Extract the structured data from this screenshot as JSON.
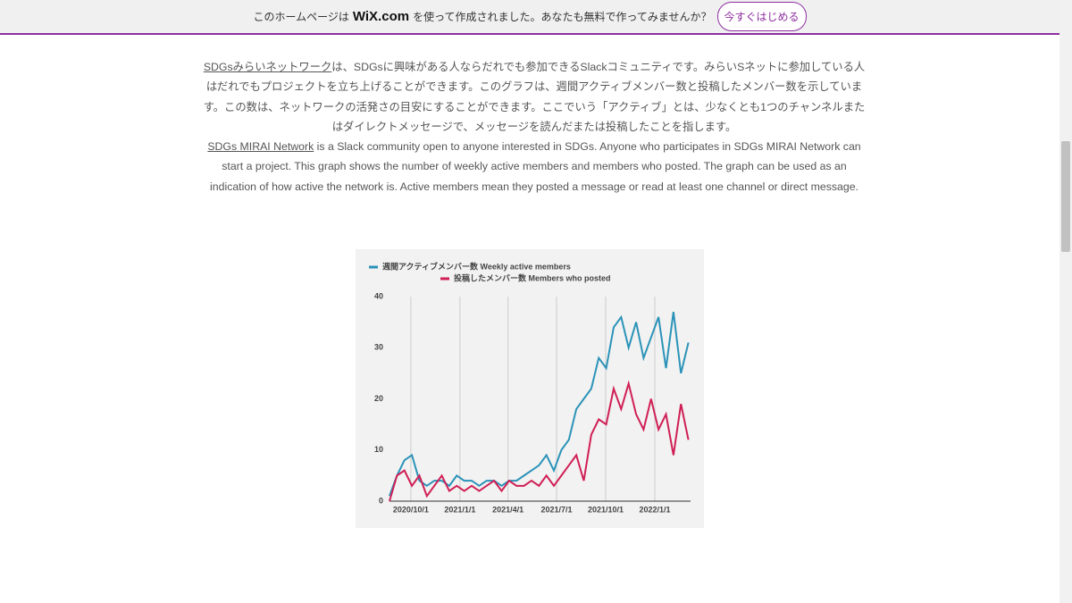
{
  "banner": {
    "text_before": "このホームページは",
    "brand": "WiX.com",
    "text_after": "を使って作成されました。あなたも無料で作ってみませんか？",
    "button": "今すぐはじめる"
  },
  "intro": {
    "ja_link": "SDGsみらいネットワーク",
    "ja_text": "は、SDGsに興味がある人ならだれでも参加できるSlackコミュニティです。みらいSネットに参加している人はだれでもプロジェクトを立ち上げることができます。このグラフは、週間アクティブメンバー数と投稿したメンバー数を示しています。この数は、ネットワークの活発さの目安にすることができます。ここでいう「アクティブ」とは、少なくとも1つのチャンネルまたはダイレクトメッセージで、メッセージを読んだまたは投稿したことを指します。",
    "en_link": "SDGs MIRAI Network",
    "en_text": " is a Slack community open to anyone interested in SDGs. Anyone who participates in SDGs MIRAI Network can start a project. This graph shows the number of weekly active members and members who posted. The graph can be used as an indication of how active the network is. Active members mean they posted a message or read at least one channel or direct message."
  },
  "chart_data": {
    "type": "line",
    "x": [
      "2020/8/22",
      "2020/9/5",
      "2020/9/19",
      "2020/10/3",
      "2020/10/17",
      "2020/10/31",
      "2020/11/14",
      "2020/11/28",
      "2020/12/12",
      "2020/12/26",
      "2021/1/9",
      "2021/1/23",
      "2021/2/6",
      "2021/2/20",
      "2021/3/6",
      "2021/3/20",
      "2021/4/3",
      "2021/4/17",
      "2021/5/1",
      "2021/5/15",
      "2021/5/29",
      "2021/6/12",
      "2021/6/26",
      "2021/7/10",
      "2021/7/24",
      "2021/8/7",
      "2021/8/21",
      "2021/9/4",
      "2021/9/18",
      "2021/10/2",
      "2021/10/16",
      "2021/10/30",
      "2021/11/13",
      "2021/11/27",
      "2021/12/11",
      "2021/12/25",
      "2022/1/8",
      "2022/1/22",
      "2022/2/5",
      "2022/2/19",
      "2022/3/5"
    ],
    "series": [
      {
        "name": "週間アクティブメンバー数  Weekly active members",
        "color": "#2b93b8",
        "values": [
          1,
          5,
          8,
          9,
          4,
          3,
          4,
          4,
          3,
          5,
          4,
          4,
          3,
          4,
          4,
          3,
          4,
          4,
          5,
          6,
          7,
          9,
          6,
          10,
          12,
          18,
          20,
          22,
          28,
          26,
          34,
          36,
          30,
          35,
          28,
          32,
          36,
          26,
          37,
          25,
          31
        ]
      },
      {
        "name": "投稿したメンバー数  Members who posted",
        "color": "#d01f55",
        "values": [
          0,
          5,
          6,
          3,
          5,
          1,
          3,
          5,
          2,
          3,
          2,
          3,
          2,
          3,
          4,
          2,
          4,
          3,
          3,
          4,
          3,
          5,
          3,
          5,
          7,
          9,
          4,
          13,
          16,
          15,
          22,
          18,
          23,
          17,
          14,
          20,
          14,
          17,
          9,
          19,
          12
        ]
      }
    ],
    "xlim": [
      "2020/8/22",
      "2022/3/9"
    ],
    "xticks": [
      "2020/10/1",
      "2021/1/1",
      "2021/4/1",
      "2021/7/1",
      "2021/10/1",
      "2022/1/1"
    ],
    "ylim": [
      0,
      40
    ],
    "yticks": [
      0,
      10,
      20,
      30,
      40
    ],
    "grid": "x"
  }
}
